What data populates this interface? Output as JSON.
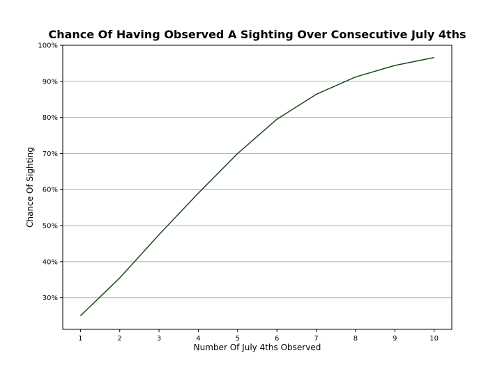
{
  "chart_data": {
    "type": "line",
    "title": "Chance Of Having Observed A Sighting Over Consecutive July 4ths",
    "xlabel": "Number Of July 4ths Observed",
    "ylabel": "Chance Of Sighting",
    "x": [
      1,
      2,
      3,
      4,
      5,
      6,
      7,
      8,
      9,
      10
    ],
    "series": [
      {
        "values": [
          0.25,
          0.355,
          0.475,
          0.59,
          0.7,
          0.795,
          0.864,
          0.912,
          0.944,
          0.966
        ]
      }
    ],
    "xlim": [
      0.55,
      10.45
    ],
    "ylim": [
      0.2125,
      1.0
    ],
    "xticks": [
      1,
      2,
      3,
      4,
      5,
      6,
      7,
      8,
      9,
      10
    ],
    "yticks": [
      0.3,
      0.4,
      0.5,
      0.6,
      0.7,
      0.8,
      0.9,
      1.0
    ],
    "ytick_labels": [
      "30%",
      "40%",
      "50%",
      "60%",
      "70%",
      "80%",
      "90%",
      "100%"
    ],
    "grid": "horizontal",
    "line_color": "#1a4a1a",
    "grid_color": "#b0b0b0"
  }
}
